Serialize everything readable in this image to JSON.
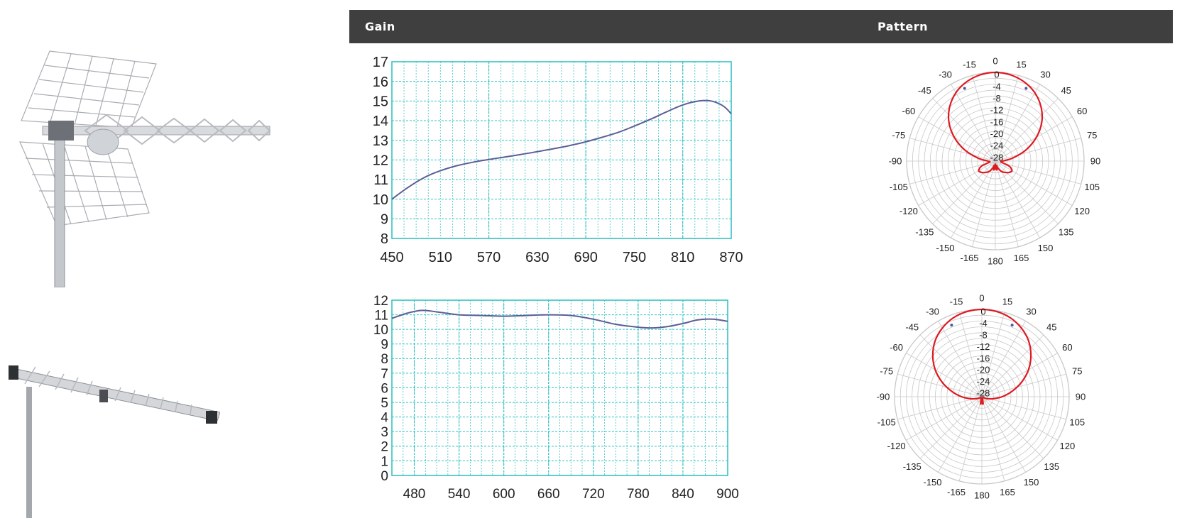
{
  "header": {
    "gain_label": "Gain",
    "pattern_label": "Pattern"
  },
  "images": [
    {
      "icon": "yagi-grid-antenna-photo"
    },
    {
      "icon": "log-periodic-antenna-photo"
    }
  ],
  "colors": {
    "header_bg": "#3f3f3f",
    "grid": "#35c3c3",
    "gain_curve": "#5b5f96",
    "pattern_curve": "#dd1a22",
    "polar_grid": "#c8c8c8"
  },
  "chart_data": [
    {
      "type": "line",
      "x": [
        450,
        470,
        490,
        510,
        530,
        550,
        570,
        590,
        610,
        630,
        650,
        670,
        690,
        710,
        730,
        750,
        770,
        790,
        810,
        830,
        845,
        860,
        870
      ],
      "series": [
        {
          "values": [
            10.0,
            10.6,
            11.1,
            11.45,
            11.7,
            11.88,
            12.02,
            12.15,
            12.28,
            12.42,
            12.57,
            12.73,
            12.92,
            13.15,
            13.4,
            13.72,
            14.07,
            14.45,
            14.8,
            15.0,
            15.0,
            14.75,
            14.35
          ]
        }
      ],
      "x_ticks": [
        "450",
        "510",
        "570",
        "630",
        "690",
        "750",
        "810",
        "870"
      ],
      "y_ticks": [
        "8",
        "9",
        "10",
        "11",
        "12",
        "13",
        "14",
        "15",
        "16",
        "17"
      ],
      "xlim": [
        450,
        870
      ],
      "ylim": [
        8,
        17
      ],
      "grid": true
    },
    {
      "type": "line",
      "x": [
        450,
        470,
        490,
        510,
        540,
        570,
        600,
        630,
        660,
        690,
        720,
        750,
        780,
        800,
        820,
        840,
        860,
        880,
        900
      ],
      "series": [
        {
          "values": [
            10.75,
            11.1,
            11.3,
            11.2,
            11.0,
            10.95,
            10.9,
            10.95,
            11.0,
            10.95,
            10.7,
            10.35,
            10.15,
            10.1,
            10.2,
            10.4,
            10.65,
            10.7,
            10.55
          ]
        }
      ],
      "x_ticks": [
        "480",
        "540",
        "600",
        "660",
        "720",
        "780",
        "840",
        "900"
      ],
      "y_ticks": [
        "0",
        "1",
        "2",
        "3",
        "4",
        "5",
        "6",
        "7",
        "8",
        "9",
        "10",
        "11",
        "12"
      ],
      "xlim": [
        450,
        900
      ],
      "ylim": [
        0,
        12
      ],
      "grid": true
    },
    {
      "type": "polar",
      "angle_labels": [
        "0",
        "15",
        "30",
        "45",
        "60",
        "75",
        "90",
        "105",
        "120",
        "135",
        "150",
        "165",
        "180",
        "-165",
        "-150",
        "-135",
        "-120",
        "-105",
        "-90",
        "-75",
        "-60",
        "-45",
        "-30",
        "-15"
      ],
      "radial_labels": [
        "0",
        "-4",
        "-8",
        "-12",
        "-16",
        "-20",
        "-24",
        "-28"
      ],
      "rlim": [
        -30,
        0
      ],
      "angles_deg": [
        0,
        10,
        20,
        30,
        40,
        50,
        60,
        70,
        80,
        90,
        100,
        110,
        120,
        130,
        140,
        150,
        160,
        165,
        170,
        175,
        180
      ],
      "values_db": [
        0,
        -0.4,
        -1.5,
        -3.3,
        -6,
        -9.5,
        -14,
        -19,
        -24,
        -27.5,
        -28,
        -25,
        -23.5,
        -24,
        -25,
        -26,
        -27.5,
        -28.5,
        -27,
        -27.5,
        -29
      ]
    },
    {
      "type": "polar",
      "angle_labels": [
        "0",
        "15",
        "30",
        "45",
        "60",
        "75",
        "90",
        "105",
        "120",
        "135",
        "150",
        "165",
        "180",
        "-165",
        "-150",
        "-135",
        "-120",
        "-105",
        "-90",
        "-75",
        "-60",
        "-45",
        "-30",
        "-15"
      ],
      "radial_labels": [
        "0",
        "-4",
        "-8",
        "-12",
        "-16",
        "-20",
        "-24",
        "-28"
      ],
      "rlim": [
        -30,
        0
      ],
      "angles_deg": [
        0,
        10,
        20,
        30,
        40,
        50,
        60,
        70,
        80,
        90,
        100,
        110,
        120,
        130,
        140,
        150,
        160,
        170,
        175,
        180
      ],
      "values_db": [
        0,
        -0.3,
        -1.2,
        -2.8,
        -5,
        -8,
        -11.5,
        -15.5,
        -19.5,
        -23,
        -26,
        -28,
        -29.2,
        -29.6,
        -29.5,
        -29.6,
        -29.3,
        -27.5,
        -27.8,
        -28.5
      ]
    }
  ]
}
